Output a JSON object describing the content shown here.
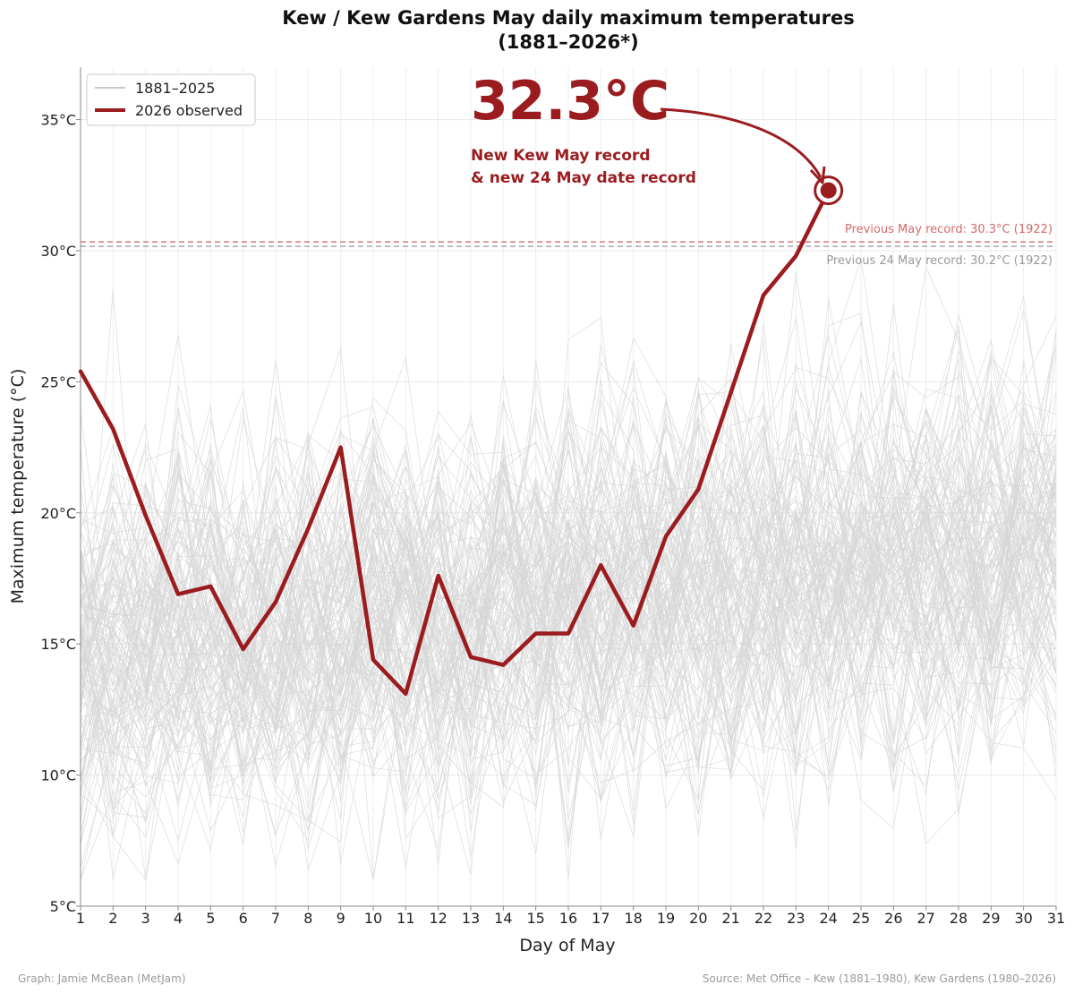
{
  "chart_data": {
    "type": "line",
    "title_line1": "Kew / Kew Gardens May daily maximum temperatures",
    "title_line2": "(1881–2026*)",
    "xlabel": "Day of May",
    "ylabel": "Maximum temperature (°C)",
    "xlim": [
      1,
      31
    ],
    "ylim": [
      5,
      37
    ],
    "x_ticks": [
      1,
      2,
      3,
      4,
      5,
      6,
      7,
      8,
      9,
      10,
      11,
      12,
      13,
      14,
      15,
      16,
      17,
      18,
      19,
      20,
      21,
      22,
      23,
      24,
      25,
      26,
      27,
      28,
      29,
      30,
      31
    ],
    "y_ticks": [
      5,
      10,
      15,
      20,
      25,
      30,
      35
    ],
    "y_tick_labels": [
      "5°C",
      "10°C",
      "15°C",
      "20°C",
      "25°C",
      "30°C",
      "35°C"
    ],
    "grid": true,
    "legend": {
      "position": "top-left",
      "entries": [
        {
          "label": "1881–2025",
          "color": "#c8c8c8"
        },
        {
          "label": "2026 observed",
          "color": "#9b1c1f"
        }
      ]
    },
    "series": [
      {
        "name": "2026 observed",
        "color": "#9b1c1f",
        "x": [
          1,
          2,
          3,
          4,
          5,
          6,
          7,
          8,
          9,
          10,
          11,
          12,
          13,
          14,
          15,
          16,
          17,
          18,
          19,
          20,
          21,
          22,
          23,
          24
        ],
        "values": [
          25.4,
          23.2,
          19.9,
          16.9,
          17.2,
          14.8,
          16.6,
          19.4,
          22.5,
          14.4,
          13.1,
          17.6,
          14.5,
          14.2,
          15.4,
          15.4,
          18.0,
          15.7,
          19.1,
          20.9,
          24.6,
          28.3,
          29.8,
          32.3
        ]
      }
    ],
    "background_series": {
      "name": "1881–2025",
      "color": "#d6d6d6",
      "count": 145,
      "note_range": [
        6,
        30.3
      ]
    },
    "reference_lines": [
      {
        "label": "Previous May record: 30.3°C (1922)",
        "value": 30.3,
        "color": "#d46a6a"
      },
      {
        "label": "Previous 24 May record: 30.2°C (1922)",
        "value": 30.2,
        "color": "#aaaaaa"
      }
    ],
    "annotation": {
      "value_text": "32.3°C",
      "line1": "New Kew May record",
      "line2": "& new 24 May date record",
      "x": 24,
      "y": 32.3
    },
    "footer_left": "Graph: Jamie McBean (MetJam)",
    "footer_right": "Source: Met Office – Kew (1881–1980), Kew Gardens (1980–2026)"
  }
}
